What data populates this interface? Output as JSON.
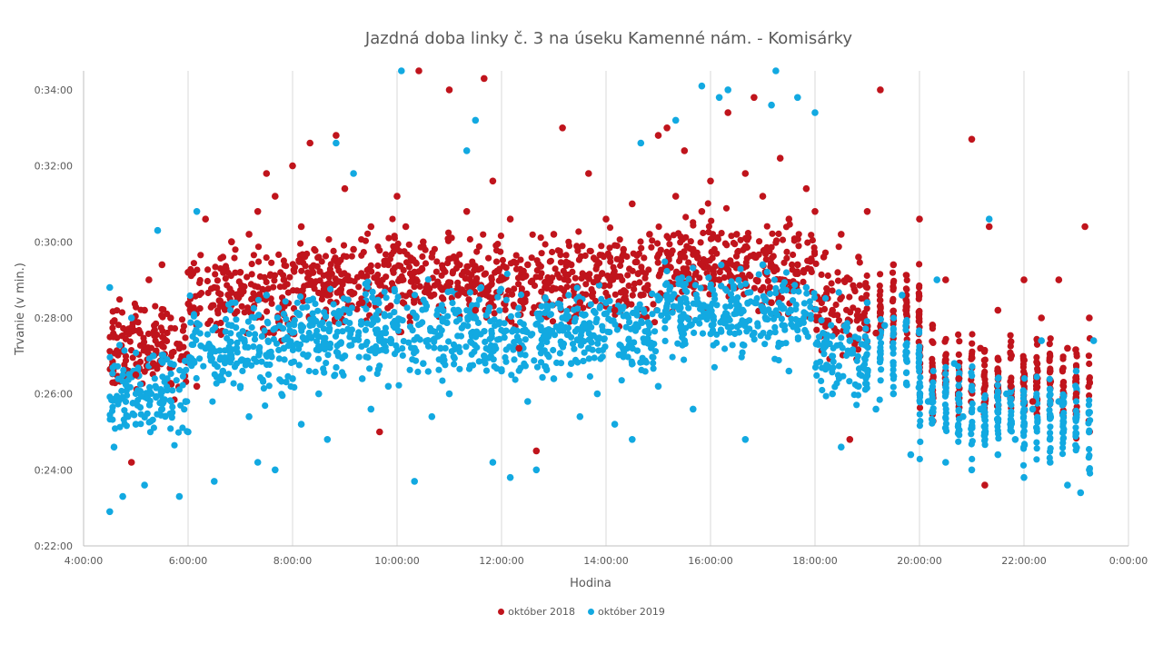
{
  "chart_data": {
    "type": "scatter",
    "title": "Jazdná doba linky č. 3 na úseku Kamenné nám. - Komisárky",
    "xlabel": "Hodina",
    "ylabel": "Trvanie (v min.)",
    "x_ticks": [
      "4:00:00",
      "6:00:00",
      "8:00:00",
      "10:00:00",
      "12:00:00",
      "14:00:00",
      "16:00:00",
      "18:00:00",
      "20:00:00",
      "22:00:00",
      "0:00:00"
    ],
    "y_ticks": [
      "0:22:00",
      "0:24:00",
      "0:26:00",
      "0:28:00",
      "0:30:00",
      "0:32:00",
      "0:34:00"
    ],
    "xlim": [
      "4:00:00",
      "0:00:00"
    ],
    "ylim": [
      "0:22:00",
      "0:34:30"
    ],
    "grid": "vertical",
    "legend_position": "bottom",
    "series": [
      {
        "name": "október 2018",
        "color": "#c0141c",
        "points": [
          [
            "4:55",
            24.2
          ],
          [
            "5:00",
            26.5
          ],
          [
            "5:05",
            27.6
          ],
          [
            "5:10",
            28.2
          ],
          [
            "5:15",
            29.0
          ],
          [
            "5:20",
            26.8
          ],
          [
            "5:30",
            29.4
          ],
          [
            "5:40",
            28.0
          ],
          [
            "5:50",
            27.2
          ],
          [
            "6:00",
            29.2
          ],
          [
            "6:10",
            26.2
          ],
          [
            "6:20",
            30.6
          ],
          [
            "6:30",
            28.8
          ],
          [
            "6:40",
            29.6
          ],
          [
            "6:50",
            30.0
          ],
          [
            "7:00",
            29.2
          ],
          [
            "7:10",
            30.2
          ],
          [
            "7:20",
            30.8
          ],
          [
            "7:30",
            31.8
          ],
          [
            "7:40",
            31.2
          ],
          [
            "7:50",
            29.0
          ],
          [
            "8:00",
            32.0
          ],
          [
            "8:10",
            30.4
          ],
          [
            "8:20",
            32.6
          ],
          [
            "8:30",
            29.6
          ],
          [
            "8:40",
            28.6
          ],
          [
            "8:50",
            32.8
          ],
          [
            "9:00",
            31.4
          ],
          [
            "9:10",
            29.8
          ],
          [
            "9:20",
            28.4
          ],
          [
            "9:30",
            30.4
          ],
          [
            "9:40",
            25.0
          ],
          [
            "9:50",
            29.4
          ],
          [
            "10:00",
            31.2
          ],
          [
            "10:10",
            30.4
          ],
          [
            "10:20",
            29.2
          ],
          [
            "10:30",
            30.0
          ],
          [
            "10:25",
            34.5
          ],
          [
            "10:40",
            29.6
          ],
          [
            "10:50",
            28.8
          ],
          [
            "11:00",
            34.0
          ],
          [
            "11:10",
            28.6
          ],
          [
            "11:20",
            30.8
          ],
          [
            "11:30",
            28.2
          ],
          [
            "11:40",
            34.3
          ],
          [
            "11:50",
            31.6
          ],
          [
            "12:00",
            29.0
          ],
          [
            "12:10",
            30.6
          ],
          [
            "12:20",
            27.2
          ],
          [
            "12:30",
            29.4
          ],
          [
            "12:40",
            24.5
          ],
          [
            "12:50",
            28.8
          ],
          [
            "13:00",
            30.2
          ],
          [
            "13:10",
            33.0
          ],
          [
            "13:20",
            29.4
          ],
          [
            "13:30",
            28.4
          ],
          [
            "13:40",
            31.8
          ],
          [
            "13:50",
            29.0
          ],
          [
            "14:00",
            30.6
          ],
          [
            "14:10",
            28.2
          ],
          [
            "14:20",
            29.8
          ],
          [
            "14:30",
            31.0
          ],
          [
            "14:40",
            28.6
          ],
          [
            "14:50",
            30.2
          ],
          [
            "15:00",
            32.8
          ],
          [
            "15:10",
            33.0
          ],
          [
            "15:20",
            31.2
          ],
          [
            "15:30",
            32.4
          ],
          [
            "15:40",
            29.8
          ],
          [
            "15:50",
            30.8
          ],
          [
            "16:00",
            31.6
          ],
          [
            "16:10",
            29.0
          ],
          [
            "16:20",
            33.4
          ],
          [
            "16:30",
            30.2
          ],
          [
            "16:40",
            31.8
          ],
          [
            "16:50",
            33.8
          ],
          [
            "17:00",
            31.2
          ],
          [
            "17:10",
            28.4
          ],
          [
            "17:20",
            32.2
          ],
          [
            "17:30",
            30.6
          ],
          [
            "17:40",
            29.4
          ],
          [
            "17:50",
            31.4
          ],
          [
            "18:00",
            30.8
          ],
          [
            "18:10",
            29.6
          ],
          [
            "18:20",
            28.2
          ],
          [
            "18:30",
            30.2
          ],
          [
            "18:40",
            24.8
          ],
          [
            "18:50",
            29.6
          ],
          [
            "19:00",
            30.8
          ],
          [
            "19:10",
            27.6
          ],
          [
            "19:15",
            34.0
          ],
          [
            "19:30",
            29.4
          ],
          [
            "19:45",
            28.6
          ],
          [
            "20:00",
            30.6
          ],
          [
            "20:15",
            27.8
          ],
          [
            "20:30",
            29.0
          ],
          [
            "20:45",
            26.4
          ],
          [
            "21:00",
            32.7
          ],
          [
            "21:10",
            27.2
          ],
          [
            "21:15",
            23.6
          ],
          [
            "21:20",
            30.4
          ],
          [
            "21:30",
            28.2
          ],
          [
            "21:45",
            26.2
          ],
          [
            "22:00",
            29.0
          ],
          [
            "22:10",
            25.8
          ],
          [
            "22:20",
            28.0
          ],
          [
            "22:30",
            26.6
          ],
          [
            "22:40",
            29.0
          ],
          [
            "22:50",
            27.2
          ],
          [
            "23:00",
            26.0
          ],
          [
            "23:10",
            30.4
          ],
          [
            "23:15",
            28.0
          ]
        ]
      },
      {
        "name": "október 2019",
        "color": "#12a9e1",
        "points": [
          [
            "4:30",
            22.9
          ],
          [
            "4:30",
            28.8
          ],
          [
            "4:35",
            24.6
          ],
          [
            "4:40",
            25.8
          ],
          [
            "4:45",
            23.3
          ],
          [
            "4:50",
            26.2
          ],
          [
            "4:55",
            28.0
          ],
          [
            "5:00",
            25.2
          ],
          [
            "5:10",
            23.6
          ],
          [
            "5:20",
            27.0
          ],
          [
            "5:25",
            30.3
          ],
          [
            "5:30",
            25.6
          ],
          [
            "5:40",
            26.8
          ],
          [
            "5:50",
            23.3
          ],
          [
            "6:00",
            25.0
          ],
          [
            "6:10",
            30.8
          ],
          [
            "6:20",
            27.2
          ],
          [
            "6:30",
            23.7
          ],
          [
            "6:40",
            26.6
          ],
          [
            "6:50",
            27.8
          ],
          [
            "7:00",
            26.2
          ],
          [
            "7:10",
            25.4
          ],
          [
            "7:20",
            24.2
          ],
          [
            "7:30",
            28.6
          ],
          [
            "7:40",
            24.0
          ],
          [
            "7:50",
            27.2
          ],
          [
            "8:00",
            26.4
          ],
          [
            "8:10",
            25.2
          ],
          [
            "8:20",
            27.8
          ],
          [
            "8:30",
            26.0
          ],
          [
            "8:40",
            24.8
          ],
          [
            "8:50",
            32.6
          ],
          [
            "9:00",
            27.0
          ],
          [
            "9:10",
            31.8
          ],
          [
            "9:20",
            26.4
          ],
          [
            "9:30",
            25.6
          ],
          [
            "9:40",
            27.4
          ],
          [
            "9:50",
            26.2
          ],
          [
            "10:00",
            27.8
          ],
          [
            "10:05",
            34.5
          ],
          [
            "10:20",
            23.7
          ],
          [
            "10:30",
            26.8
          ],
          [
            "10:40",
            25.4
          ],
          [
            "10:50",
            27.2
          ],
          [
            "11:00",
            26.0
          ],
          [
            "11:10",
            28.2
          ],
          [
            "11:20",
            32.4
          ],
          [
            "11:30",
            33.2
          ],
          [
            "11:40",
            27.0
          ],
          [
            "11:50",
            24.2
          ],
          [
            "12:00",
            26.6
          ],
          [
            "12:10",
            23.8
          ],
          [
            "12:20",
            27.4
          ],
          [
            "12:30",
            25.8
          ],
          [
            "12:40",
            24.0
          ],
          [
            "12:50",
            27.6
          ],
          [
            "13:00",
            26.4
          ],
          [
            "13:10",
            28.0
          ],
          [
            "13:20",
            26.8
          ],
          [
            "13:30",
            25.4
          ],
          [
            "13:40",
            27.2
          ],
          [
            "13:50",
            26.0
          ],
          [
            "14:00",
            28.4
          ],
          [
            "14:10",
            25.2
          ],
          [
            "14:20",
            27.0
          ],
          [
            "14:30",
            24.8
          ],
          [
            "14:40",
            32.6
          ],
          [
            "14:50",
            27.8
          ],
          [
            "15:00",
            26.2
          ],
          [
            "15:10",
            28.6
          ],
          [
            "15:20",
            33.2
          ],
          [
            "15:30",
            27.4
          ],
          [
            "15:40",
            25.6
          ],
          [
            "15:50",
            34.1
          ],
          [
            "16:00",
            28.8
          ],
          [
            "16:10",
            33.8
          ],
          [
            "16:20",
            34.0
          ],
          [
            "16:30",
            28.2
          ],
          [
            "16:40",
            24.8
          ],
          [
            "16:50",
            27.6
          ],
          [
            "17:00",
            29.4
          ],
          [
            "17:10",
            33.6
          ],
          [
            "17:15",
            34.5
          ],
          [
            "17:30",
            26.6
          ],
          [
            "17:40",
            33.8
          ],
          [
            "17:50",
            28.8
          ],
          [
            "18:00",
            33.4
          ],
          [
            "18:10",
            27.2
          ],
          [
            "18:20",
            26.0
          ],
          [
            "18:30",
            24.6
          ],
          [
            "18:40",
            27.4
          ],
          [
            "18:50",
            26.2
          ],
          [
            "19:00",
            28.4
          ],
          [
            "19:10",
            25.6
          ],
          [
            "19:20",
            27.8
          ],
          [
            "19:30",
            26.0
          ],
          [
            "19:40",
            28.6
          ],
          [
            "19:50",
            24.4
          ],
          [
            "20:00",
            27.0
          ],
          [
            "20:10",
            25.8
          ],
          [
            "20:20",
            29.0
          ],
          [
            "20:30",
            24.2
          ],
          [
            "20:40",
            26.8
          ],
          [
            "20:50",
            25.4
          ],
          [
            "21:00",
            24.0
          ],
          [
            "21:10",
            25.6
          ],
          [
            "21:20",
            30.6
          ],
          [
            "21:30",
            24.4
          ],
          [
            "21:40",
            26.0
          ],
          [
            "21:50",
            24.8
          ],
          [
            "22:00",
            23.8
          ],
          [
            "22:10",
            25.6
          ],
          [
            "22:20",
            27.4
          ],
          [
            "22:30",
            24.2
          ],
          [
            "22:40",
            25.8
          ],
          [
            "22:50",
            23.6
          ],
          [
            "23:00",
            26.6
          ],
          [
            "23:05",
            23.4
          ],
          [
            "23:15",
            24.0
          ],
          [
            "23:20",
            27.4
          ]
        ]
      }
    ]
  }
}
